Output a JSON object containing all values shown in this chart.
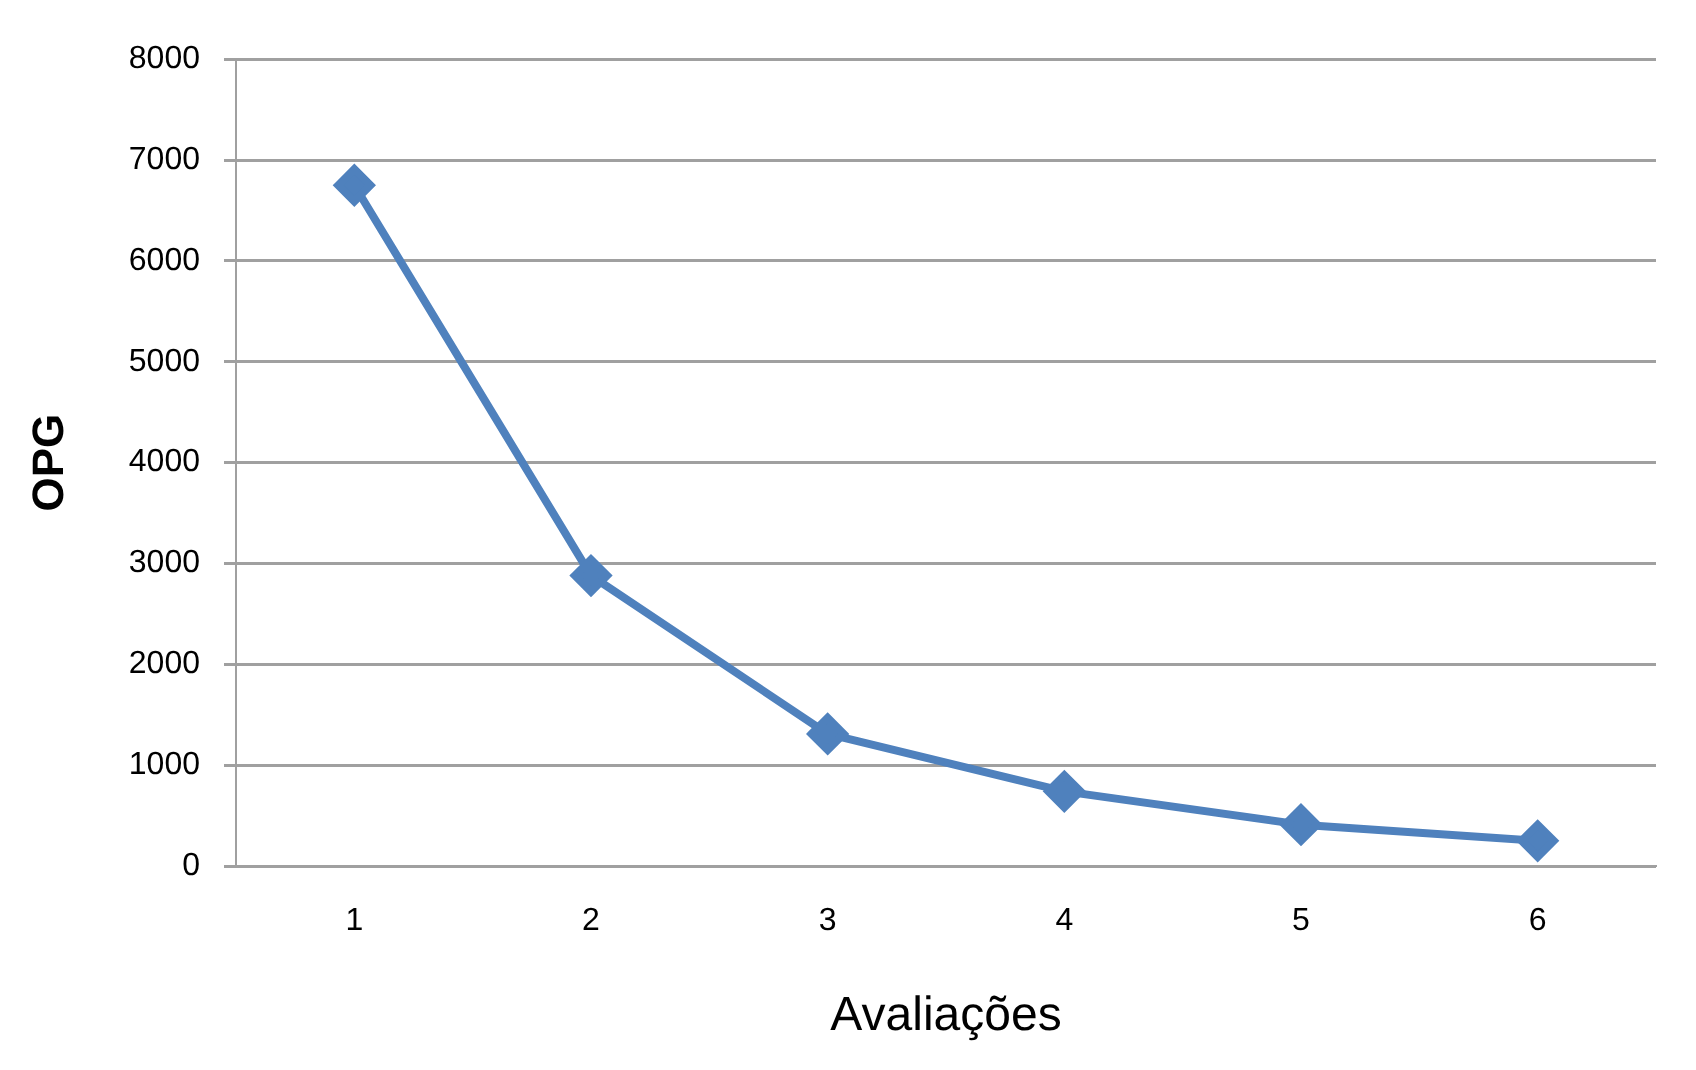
{
  "chart_data": {
    "type": "line",
    "xlabel": "Avaliações",
    "ylabel": "OPG",
    "categories": [
      "1",
      "2",
      "3",
      "4",
      "5",
      "6"
    ],
    "series": [
      {
        "color": "#4f81bd",
        "values": [
          6750,
          2880,
          1310,
          740,
          410,
          250
        ]
      }
    ],
    "ylim": [
      0,
      8000
    ],
    "yticks": [
      0,
      1000,
      2000,
      3000,
      4000,
      5000,
      6000,
      7000,
      8000
    ],
    "grid": "y",
    "legend": false,
    "marker": "diamond",
    "line_style": "solid"
  }
}
